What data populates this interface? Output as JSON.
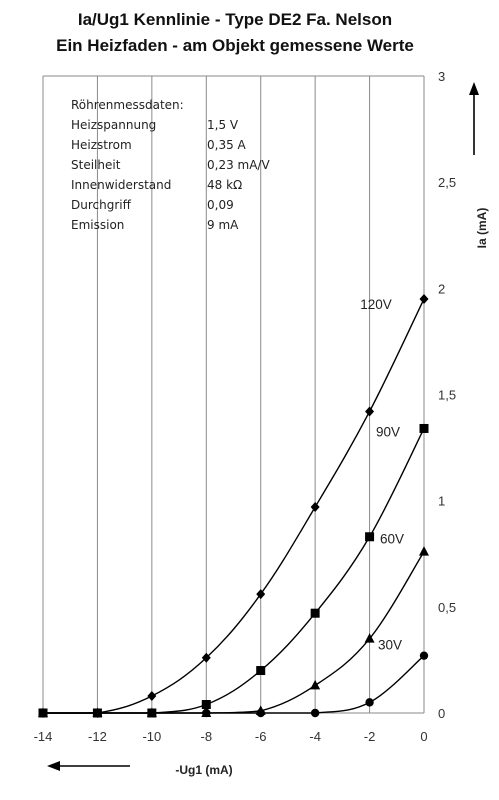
{
  "chart_data": {
    "type": "line",
    "title": "Ia/Ug1 Kennlinie - Type DE2 Fa. Nelson",
    "subtitle": "Ein Heizfaden - am Objekt gemessene Werte",
    "xlabel": "-Ug1 (mA)",
    "ylabel": "Ia (mA)",
    "xlim": [
      -14,
      0
    ],
    "ylim": [
      0,
      3
    ],
    "x_ticks": [
      "-14",
      "-12",
      "-10",
      "-8",
      "-6",
      "-4",
      "-2",
      "0"
    ],
    "y_ticks": [
      "0",
      "0,5",
      "1",
      "1,5",
      "2",
      "2,5",
      "3"
    ],
    "grid": "vertical",
    "series": [
      {
        "name": "120V",
        "marker": "diamond",
        "x": [
          -14,
          -12,
          -10,
          -8,
          -6,
          -4,
          -2,
          0
        ],
        "y": [
          0,
          0,
          0.08,
          0.26,
          0.56,
          0.97,
          1.42,
          1.95
        ]
      },
      {
        "name": "90V",
        "marker": "square",
        "x": [
          -14,
          -12,
          -10,
          -8,
          -6,
          -4,
          -2,
          0
        ],
        "y": [
          0,
          0,
          0,
          0.04,
          0.2,
          0.47,
          0.83,
          1.34
        ]
      },
      {
        "name": "60V",
        "marker": "triangle",
        "x": [
          -14,
          -12,
          -10,
          -8,
          -6,
          -4,
          -2,
          0
        ],
        "y": [
          0,
          0,
          0,
          0,
          0.01,
          0.13,
          0.35,
          0.76
        ]
      },
      {
        "name": "30V",
        "marker": "circle",
        "x": [
          -14,
          -12,
          -10,
          -8,
          -6,
          -4,
          -2,
          0
        ],
        "y": [
          0,
          0,
          0,
          0,
          0,
          0,
          0.05,
          0.27
        ]
      }
    ]
  },
  "info_box": {
    "heading": "Röhrenmessdaten:",
    "rows": [
      {
        "key": "Heizspannung",
        "value": "1,5 V"
      },
      {
        "key": "Heizstrom",
        "value": "0,35 A"
      },
      {
        "key": "Steilheit",
        "value": "0,23 mA/V"
      },
      {
        "key": "Innenwiderstand",
        "value": "48 kΩ"
      },
      {
        "key": "Durchgriff",
        "value": "0,09"
      },
      {
        "key": "Emission",
        "value": "9 mA"
      }
    ]
  },
  "colors": {
    "line": "#000000",
    "grid": "#8a8a8a",
    "text": "#222222"
  }
}
